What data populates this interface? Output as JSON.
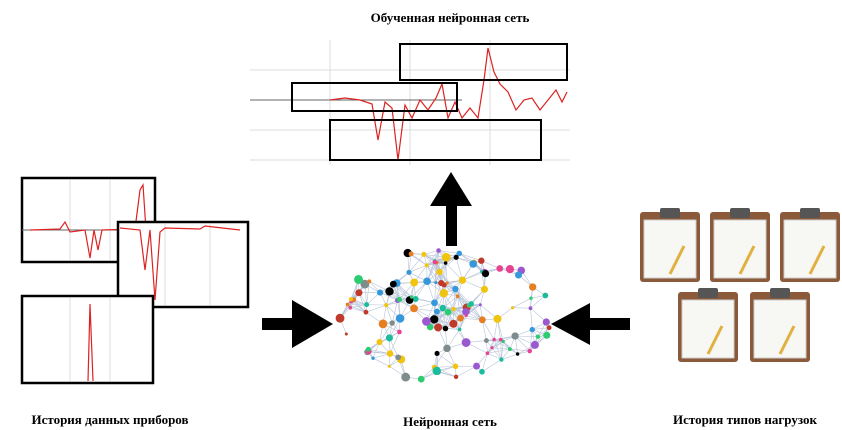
{
  "top": {
    "label": "Обученная нейронная сеть"
  },
  "left": {
    "label": "История данных приборов"
  },
  "center": {
    "label": "Нейронная сеть"
  },
  "right": {
    "label": "История типов нагрузок"
  }
}
